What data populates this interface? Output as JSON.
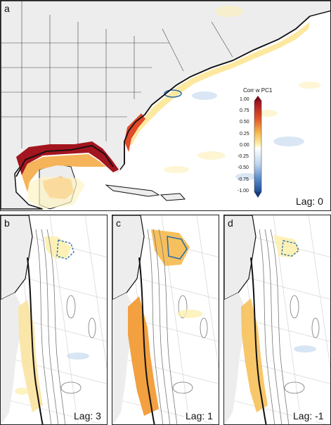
{
  "panels": [
    {
      "id": "a",
      "lag_text": "Lag: 0"
    },
    {
      "id": "b",
      "lag_text": "Lag: 3"
    },
    {
      "id": "c",
      "lag_text": "Lag: 1"
    },
    {
      "id": "d",
      "lag_text": "Lag: -1"
    }
  ],
  "colorbar": {
    "title": "Corr w PC1",
    "ticks": [
      "1.00",
      "0.75",
      "0.50",
      "0.25",
      "0.00",
      "-0.25",
      "-0.50",
      "-0.75",
      "-1.00"
    ],
    "range": [
      -1.0,
      1.0
    ],
    "colors": {
      "neg_strong": "#1f4e9a",
      "neg": "#7fa9d8",
      "neutral": "#ffffff",
      "pos_weak": "#fdf0b0",
      "pos_mid": "#f2a63a",
      "pos_strong": "#9c1020"
    }
  },
  "colors": {
    "land": "#ededed",
    "ocean": "#ffffff",
    "coast": "#111111",
    "border": "#444444",
    "contour": "#2e6fa6"
  }
}
